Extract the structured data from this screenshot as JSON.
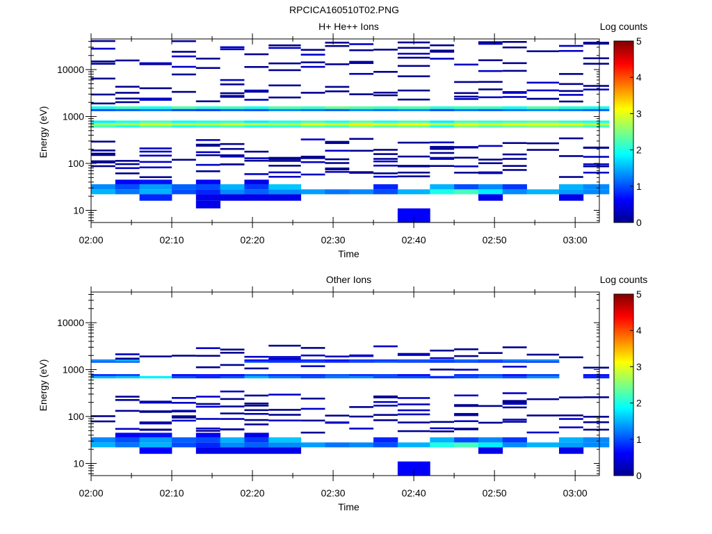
{
  "figure_title": "RPCICA160510T02.PNG",
  "colors": {
    "colormap": [
      "#00008f",
      "#0000ff",
      "#0080ff",
      "#00ffff",
      "#80ff80",
      "#ffff00",
      "#ff8000",
      "#ff0000",
      "#800000"
    ]
  },
  "chart_data": [
    {
      "type": "heatmap",
      "title": "H+ He++ Ions",
      "xlabel": "Time",
      "ylabel": "Energy (eV)",
      "y_scale": "log",
      "ylim": [
        5.5,
        45000
      ],
      "xlim": [
        "02:00",
        "03:03"
      ],
      "x_ticks": [
        "02:00",
        "02:10",
        "02:20",
        "02:30",
        "02:40",
        "02:50",
        "03:00"
      ],
      "y_ticks": [
        "10",
        "100",
        "1000",
        "10000"
      ],
      "colorbar": {
        "label": "Log counts",
        "min": 0,
        "max": 5,
        "ticks": [
          "0",
          "1",
          "2",
          "3",
          "4",
          "5"
        ]
      },
      "time_bins": [
        "02:00",
        "02:03",
        "02:06",
        "02:10",
        "02:13",
        "02:16",
        "02:19",
        "02:22",
        "02:26",
        "02:29",
        "02:32",
        "02:35",
        "02:38",
        "02:42",
        "02:45",
        "02:48",
        "02:51",
        "02:54",
        "02:58",
        "03:01"
      ],
      "bands": [
        {
          "energy": [
            22,
            28
          ],
          "values": [
            1.5,
            1.2,
            1.5,
            1.0,
            0.8,
            1.3,
            1.1,
            1.3,
            1.4,
            1.2,
            1.3,
            1.0,
            1.5,
            2.0,
            2.2,
            1.8,
            1.3,
            1.5,
            1.4,
            1.3
          ]
        },
        {
          "energy": [
            28,
            36
          ],
          "values": [
            1.3,
            1.0,
            1.4,
            1.1,
            1.0,
            1.5,
            0.9,
            1.6,
            null,
            null,
            null,
            0.8,
            null,
            1.5,
            1.0,
            1.3,
            0.9,
            null,
            1.5,
            1.3
          ]
        },
        {
          "energy": [
            36,
            45
          ],
          "values": [
            null,
            0.6,
            0.7,
            null,
            0.6,
            null,
            0.5,
            null,
            null,
            null,
            null,
            null,
            null,
            null,
            null,
            null,
            null,
            null,
            null,
            null
          ]
        },
        {
          "energy": [
            16,
            22
          ],
          "values": [
            null,
            null,
            0.8,
            null,
            0.5,
            0.5,
            0.5,
            0.5,
            null,
            null,
            null,
            null,
            null,
            null,
            null,
            0.5,
            null,
            null,
            0.5,
            null
          ]
        },
        {
          "energy": [
            11,
            16
          ],
          "values": [
            null,
            null,
            null,
            null,
            0.5,
            null,
            null,
            null,
            null,
            null,
            null,
            null,
            null,
            null,
            null,
            null,
            null,
            null,
            null,
            null
          ]
        },
        {
          "energy": [
            5.5,
            11
          ],
          "values": [
            null,
            null,
            null,
            null,
            null,
            null,
            null,
            null,
            null,
            null,
            null,
            null,
            0.6,
            null,
            null,
            null,
            null,
            null,
            null,
            null
          ]
        },
        {
          "energy": [
            580,
            650
          ],
          "values": [
            2.2,
            2.0,
            2.3,
            2.0,
            2.1,
            2.2,
            2.0,
            2.1,
            2.3,
            2.2,
            2.5,
            2.3,
            2.4,
            2.0,
            2.5,
            2.3,
            2.4,
            2.5,
            2.4,
            2.2
          ]
        },
        {
          "energy": [
            650,
            730
          ],
          "values": [
            2.6,
            2.7,
            2.9,
            2.8,
            2.8,
            2.9,
            2.8,
            2.7,
            3.0,
            2.9,
            3.2,
            3.0,
            3.1,
            2.8,
            3.0,
            2.9,
            3.0,
            3.0,
            3.0,
            2.8
          ]
        },
        {
          "energy": [
            730,
            820
          ],
          "values": [
            1.8,
            2.0,
            2.2,
            1.9,
            2.0,
            2.1,
            1.8,
            2.0,
            2.2,
            2.0,
            2.3,
            2.0,
            2.2,
            1.8,
            2.2,
            2.1,
            2.2,
            2.3,
            2.1,
            2.0
          ]
        },
        {
          "energy": [
            1300,
            1450
          ],
          "values": [
            1.0,
            1.1,
            1.2,
            1.0,
            0.9,
            1.1,
            1.0,
            1.3,
            1.2,
            1.1,
            1.3,
            1.2,
            1.3,
            1.0,
            1.2,
            1.1,
            1.2,
            1.3,
            1.2,
            1.1
          ]
        },
        {
          "energy": [
            1450,
            1650
          ],
          "values": [
            2.0,
            2.2,
            2.0,
            2.3,
            2.1,
            2.2,
            2.0,
            2.3,
            2.2,
            2.4,
            2.3,
            2.2,
            2.3,
            2.1,
            2.2,
            2.2,
            2.0,
            2.3,
            2.1,
            2.0
          ]
        }
      ],
      "sparse_levels_top": [
        3500,
        5000,
        7000,
        9500,
        12000,
        16000,
        22000,
        28000,
        35000,
        40000
      ],
      "sparse_levels_mid": [
        2200,
        2600,
        3000,
        300,
        250,
        210,
        180,
        160,
        140,
        120,
        100,
        85,
        70,
        60
      ]
    },
    {
      "type": "heatmap",
      "title": "Other Ions",
      "xlabel": "Time",
      "ylabel": "Energy (eV)",
      "y_scale": "log",
      "ylim": [
        5.5,
        45000
      ],
      "xlim": [
        "02:00",
        "03:03"
      ],
      "x_ticks": [
        "02:00",
        "02:10",
        "02:20",
        "02:30",
        "02:40",
        "02:50",
        "03:00"
      ],
      "y_ticks": [
        "10",
        "100",
        "1000",
        "10000"
      ],
      "colorbar": {
        "label": "Log counts",
        "min": 0,
        "max": 5,
        "ticks": [
          "0",
          "1",
          "2",
          "3",
          "4",
          "5"
        ]
      },
      "time_bins": [
        "02:00",
        "02:03",
        "02:06",
        "02:10",
        "02:13",
        "02:16",
        "02:19",
        "02:22",
        "02:26",
        "02:29",
        "02:32",
        "02:35",
        "02:38",
        "02:42",
        "02:45",
        "02:48",
        "02:51",
        "02:54",
        "02:58",
        "03:01"
      ],
      "bands": [
        {
          "energy": [
            22,
            28
          ],
          "values": [
            1.5,
            1.2,
            1.5,
            1.0,
            0.8,
            1.3,
            1.1,
            1.3,
            1.4,
            1.2,
            1.3,
            1.0,
            1.5,
            2.0,
            2.2,
            1.8,
            1.3,
            1.5,
            1.4,
            1.3
          ]
        },
        {
          "energy": [
            28,
            36
          ],
          "values": [
            1.3,
            1.0,
            1.4,
            1.1,
            1.0,
            1.5,
            0.9,
            1.6,
            null,
            null,
            null,
            0.8,
            null,
            1.5,
            1.0,
            1.3,
            0.9,
            null,
            1.5,
            1.3
          ]
        },
        {
          "energy": [
            36,
            45
          ],
          "values": [
            null,
            0.6,
            0.7,
            null,
            0.6,
            null,
            0.5,
            null,
            null,
            null,
            null,
            null,
            null,
            null,
            null,
            null,
            null,
            null,
            null,
            null
          ]
        },
        {
          "energy": [
            16,
            22
          ],
          "values": [
            null,
            null,
            0.6,
            null,
            0.5,
            0.5,
            0.5,
            0.5,
            null,
            null,
            null,
            null,
            null,
            null,
            null,
            0.5,
            null,
            null,
            0.5,
            null
          ]
        },
        {
          "energy": [
            5.5,
            11
          ],
          "values": [
            null,
            null,
            null,
            null,
            null,
            null,
            null,
            null,
            null,
            null,
            null,
            null,
            0.6,
            null,
            null,
            null,
            null,
            null,
            null,
            null
          ]
        },
        {
          "energy": [
            650,
            730
          ],
          "values": [
            1.5,
            1.6,
            1.8,
            1.0,
            0.8,
            1.0,
            1.5,
            1.2,
            1.0,
            1.2,
            1.3,
            1.0,
            1.0,
            0.8,
            1.0,
            1.2,
            1.0,
            1.3,
            null,
            0.8
          ]
        },
        {
          "energy": [
            730,
            800
          ],
          "values": [
            0.8,
            0.9,
            null,
            0.6,
            0.7,
            0.6,
            1.0,
            0.8,
            0.8,
            1.0,
            0.8,
            0.9,
            0.6,
            null,
            0.8,
            0.9,
            0.6,
            0.9,
            null,
            0.6
          ]
        },
        {
          "energy": [
            1400,
            1500
          ],
          "values": [
            1.0,
            1.0,
            null,
            null,
            null,
            null,
            1.0,
            0.8,
            0.9,
            0.8,
            0.9,
            1.0,
            0.9,
            0.8,
            0.9,
            0.8,
            0.9,
            0.8,
            null,
            null
          ]
        },
        {
          "energy": [
            1500,
            1650
          ],
          "values": [
            1.3,
            1.5,
            null,
            null,
            null,
            null,
            0.7,
            0.8,
            0.8,
            0.7,
            0.9,
            0.9,
            1.0,
            1.0,
            1.1,
            1.0,
            1.2,
            1.3,
            null,
            null
          ]
        }
      ],
      "sparse_levels_top": [
        2900,
        2000,
        1800,
        1100
      ],
      "sparse_levels_mid": [
        300,
        250,
        220,
        180,
        150,
        130,
        110,
        85,
        75,
        60,
        50
      ]
    }
  ]
}
